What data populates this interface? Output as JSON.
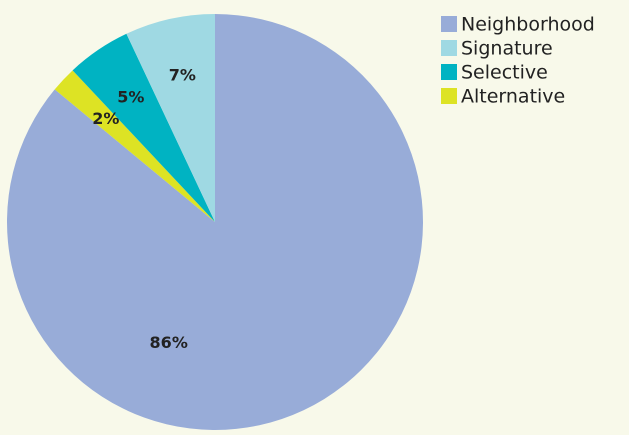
{
  "chart_data": {
    "type": "pie",
    "title": "",
    "legend_position": "top-right",
    "start_angle": "12 o'clock",
    "direction": "clockwise",
    "slices": [
      {
        "label": "Neighborhood",
        "value": 86,
        "value_label": "86%",
        "color": "#98acd8"
      },
      {
        "label": "Alternative",
        "value": 2,
        "value_label": "2%",
        "color": "#dde324"
      },
      {
        "label": "Selective",
        "value": 5,
        "value_label": "5%",
        "color": "#00b3c2"
      },
      {
        "label": "Signature",
        "value": 7,
        "value_label": "7%",
        "color": "#9fd9e3"
      }
    ],
    "legend": [
      {
        "label": "Neighborhood",
        "color": "#98acd8"
      },
      {
        "label": "Signature",
        "color": "#9fd9e3"
      },
      {
        "label": "Selective",
        "color": "#00b3c2"
      },
      {
        "label": "Alternative",
        "color": "#dde324"
      }
    ]
  },
  "colors": {
    "background": "#f8f9ea",
    "label_text": "#222222",
    "slice_border": "#f8f9ea"
  }
}
